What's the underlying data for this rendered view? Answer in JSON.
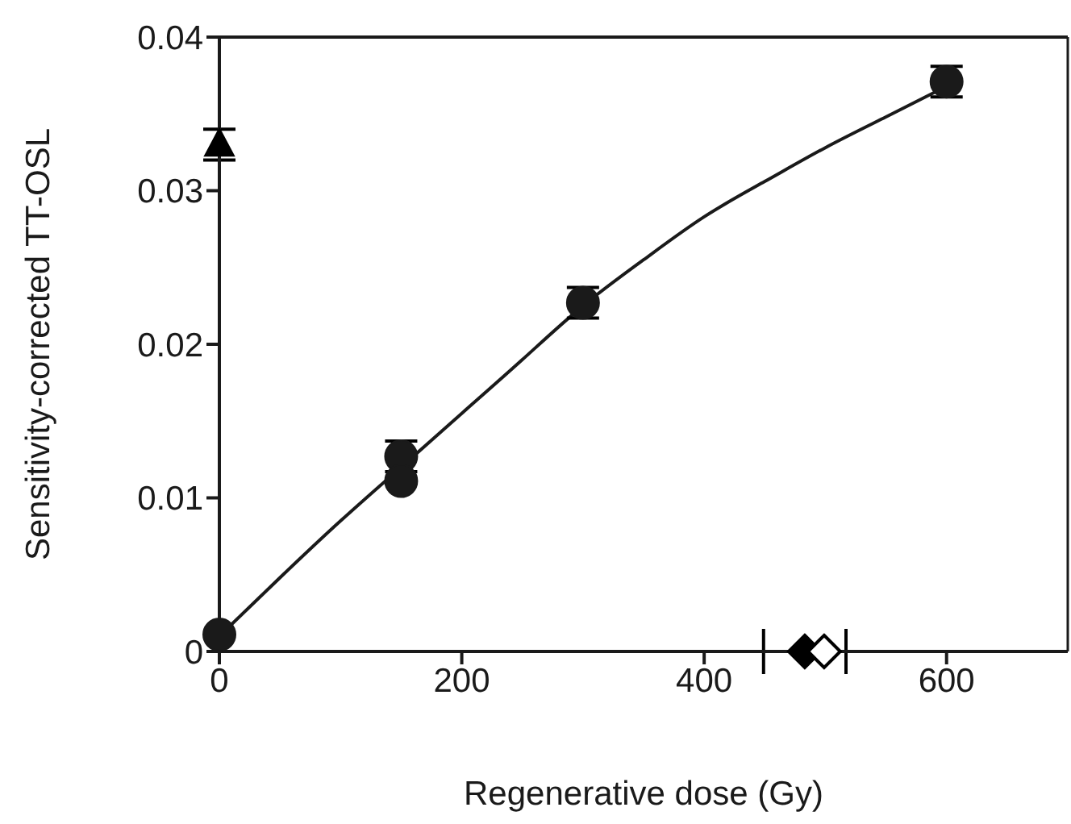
{
  "chart_data": {
    "type": "scatter",
    "xlabel": "Regenerative dose (Gy)",
    "ylabel": "Sensitivity-corrected TT-OSL",
    "xlim": [
      0,
      700
    ],
    "ylim": [
      0,
      0.04
    ],
    "xticks": [
      0,
      200,
      400,
      600
    ],
    "yticks": [
      0,
      0.01,
      0.02,
      0.03,
      0.04
    ],
    "legend": false,
    "series": [
      {
        "type": "line",
        "marker": "none",
        "line_style": "solid",
        "color": "#1a1a1a",
        "x": [
          0,
          50,
          100,
          150,
          200,
          250,
          300,
          350,
          400,
          450,
          500,
          550,
          600
        ],
        "values": [
          0.001,
          0.0048,
          0.0085,
          0.012,
          0.0155,
          0.019,
          0.0225,
          0.0255,
          0.0283,
          0.0306,
          0.0328,
          0.0348,
          0.0368
        ]
      },
      {
        "marker": "circle",
        "color": "#1a1a1a",
        "x": [
          0,
          150,
          150,
          300,
          600
        ],
        "values": [
          0.0011,
          0.0127,
          0.0111,
          0.0227,
          0.0371
        ],
        "errors": [
          null,
          0.001,
          null,
          0.001,
          0.001
        ]
      },
      {
        "marker": "triangle",
        "color": "#000000",
        "x": [
          0
        ],
        "values": [
          0.033
        ],
        "errors": [
          0.001
        ]
      },
      {
        "marker": "diamond",
        "color": "#000000",
        "x": [
          483
        ],
        "values": [
          0
        ],
        "xerrors": [
          34
        ]
      },
      {
        "marker": "diamond",
        "color": "#ffffff",
        "x": [
          499
        ],
        "values": [
          0
        ]
      }
    ]
  }
}
